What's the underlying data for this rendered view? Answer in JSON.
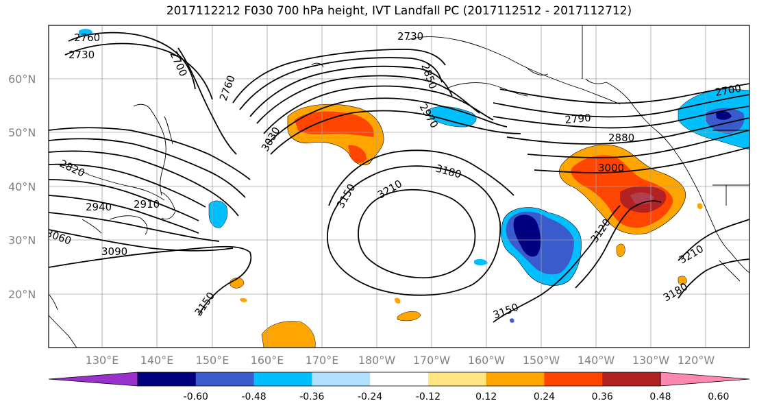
{
  "title": "2017112212 F030 700 hPa height, IVT Landfall PC (2017112512 - 2017112712)",
  "lat_labels": [
    "60°N",
    "50°N",
    "40°N",
    "30°N",
    "20°N"
  ],
  "lon_labels": [
    "130°E",
    "140°E",
    "150°E",
    "160°E",
    "170°E",
    "180°W",
    "170°W",
    "160°W",
    "150°W",
    "140°W",
    "130°W",
    "120°W"
  ],
  "contour_labels": [
    "2760",
    "2730",
    "2700",
    "2760",
    "2730",
    "2850",
    "2970",
    "3030",
    "2790",
    "2700",
    "2880",
    "3000",
    "2820",
    "2940",
    "2910",
    "3060",
    "3090",
    "3150",
    "3210",
    "3180",
    "3150",
    "3120",
    "3210",
    "3180",
    "3150"
  ],
  "colorbar": {
    "colors": [
      "#9932cc",
      "#000080",
      "#3a5bcc",
      "#00bfff",
      "#b0e0ff",
      "#ffffff",
      "#ffe680",
      "#ffa500",
      "#ff4500",
      "#b22222",
      "#ff88b0"
    ],
    "ticks": [
      "-0.60",
      "-0.48",
      "-0.36",
      "-0.24",
      "-0.12",
      "0.12",
      "0.24",
      "0.36",
      "0.48",
      "0.60"
    ]
  },
  "colors": {
    "contour": "#000000",
    "grid": "#a0a0a0",
    "coast": "#000000"
  }
}
